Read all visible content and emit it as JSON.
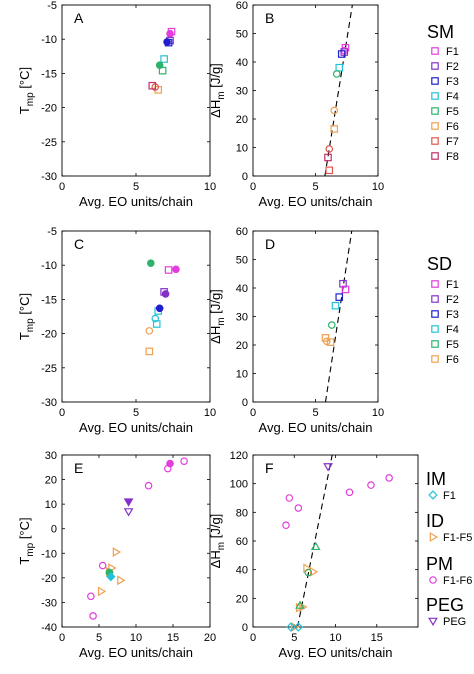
{
  "palette": {
    "F1": "#e33ddc",
    "F2": "#8431c9",
    "F3": "#1f1fcf",
    "F4": "#22c2d6",
    "F5": "#2db36b",
    "F6": "#f0a050",
    "F7": "#e0574a",
    "F8": "#c0306a"
  },
  "chart_data": [
    {
      "id": "A",
      "type": "scatter",
      "panel_label": "A",
      "xlabel": "Avg. EO units/chain",
      "ylabel_main": "T",
      "ylabel_sub": "mp",
      "ylabel_unit": " [°C]",
      "xlim": [
        0,
        10
      ],
      "ylim": [
        -30,
        -5
      ],
      "xticks": [
        0,
        5,
        10
      ],
      "yticks": [
        -5,
        -10,
        -15,
        -20,
        -25,
        -30
      ],
      "series": [
        {
          "marker": "square",
          "color": "F1",
          "filled": false,
          "points": [
            [
              7.4,
              -8.9
            ]
          ]
        },
        {
          "marker": "circle",
          "color": "F1",
          "filled": true,
          "points": [
            [
              7.3,
              -9.2
            ]
          ]
        },
        {
          "marker": "square",
          "color": "F2",
          "filled": false,
          "points": [
            [
              7.3,
              -10.2
            ]
          ]
        },
        {
          "marker": "square",
          "color": "F3",
          "filled": false,
          "points": [
            [
              7.2,
              -10.5
            ]
          ]
        },
        {
          "marker": "circle",
          "color": "F3",
          "filled": true,
          "points": [
            [
              7.1,
              -10.4
            ]
          ]
        },
        {
          "marker": "square",
          "color": "F4",
          "filled": false,
          "points": [
            [
              6.9,
              -12.9
            ]
          ]
        },
        {
          "marker": "circle",
          "color": "F5",
          "filled": true,
          "points": [
            [
              6.6,
              -13.8
            ]
          ]
        },
        {
          "marker": "square",
          "color": "F5",
          "filled": false,
          "points": [
            [
              6.8,
              -14.6
            ]
          ]
        },
        {
          "marker": "square",
          "color": "F6",
          "filled": false,
          "points": [
            [
              6.5,
              -17.4
            ]
          ]
        },
        {
          "marker": "circle",
          "color": "F7",
          "filled": false,
          "points": [
            [
              6.3,
              -17.0
            ]
          ]
        },
        {
          "marker": "square",
          "color": "F8",
          "filled": false,
          "points": [
            [
              6.1,
              -16.8
            ]
          ]
        }
      ]
    },
    {
      "id": "B",
      "type": "scatter",
      "panel_label": "B",
      "xlabel": "Avg. EO units/chain",
      "ylabel_main": "ΔH",
      "ylabel_sub": "m",
      "ylabel_unit": " [J/g]",
      "xlim": [
        0,
        10
      ],
      "ylim": [
        0,
        60
      ],
      "xticks": [
        0,
        5,
        10
      ],
      "yticks": [
        0,
        10,
        20,
        30,
        40,
        50,
        60
      ],
      "fit_line": [
        [
          5.75,
          0
        ],
        [
          7.95,
          60
        ]
      ],
      "series": [
        {
          "marker": "square",
          "color": "F1",
          "filled": false,
          "points": [
            [
              7.4,
              45.0
            ]
          ]
        },
        {
          "marker": "circle",
          "color": "F1",
          "filled": false,
          "points": [
            [
              7.3,
              44.0
            ]
          ]
        },
        {
          "marker": "square",
          "color": "F2",
          "filled": false,
          "points": [
            [
              7.3,
              43.5
            ]
          ]
        },
        {
          "marker": "square",
          "color": "F3",
          "filled": false,
          "points": [
            [
              7.1,
              42.8
            ]
          ]
        },
        {
          "marker": "square",
          "color": "F4",
          "filled": false,
          "points": [
            [
              6.9,
              38.0
            ]
          ]
        },
        {
          "marker": "circle",
          "color": "F5",
          "filled": false,
          "points": [
            [
              6.7,
              35.8
            ]
          ]
        },
        {
          "marker": "circle",
          "color": "F6",
          "filled": false,
          "points": [
            [
              6.5,
              23.0
            ]
          ]
        },
        {
          "marker": "square",
          "color": "F6",
          "filled": false,
          "points": [
            [
              6.5,
              16.5
            ]
          ]
        },
        {
          "marker": "circle",
          "color": "F7",
          "filled": false,
          "points": [
            [
              6.1,
              9.5
            ]
          ]
        },
        {
          "marker": "square",
          "color": "F8",
          "filled": false,
          "points": [
            [
              6.0,
              6.5
            ]
          ]
        },
        {
          "marker": "square",
          "color": "F7",
          "filled": false,
          "points": [
            [
              6.1,
              2.0
            ]
          ]
        }
      ]
    },
    {
      "id": "C",
      "type": "scatter",
      "panel_label": "C",
      "xlabel": "Avg. EO units/chain",
      "ylabel_main": "T",
      "ylabel_sub": "mp",
      "ylabel_unit": " [°C]",
      "xlim": [
        0,
        10
      ],
      "ylim": [
        -30,
        -5
      ],
      "xticks": [
        0,
        5,
        10
      ],
      "yticks": [
        -5,
        -10,
        -15,
        -20,
        -25,
        -30
      ],
      "series": [
        {
          "marker": "circle",
          "color": "F5",
          "filled": true,
          "points": [
            [
              6.0,
              -9.7
            ]
          ]
        },
        {
          "marker": "square",
          "color": "F1",
          "filled": false,
          "points": [
            [
              7.2,
              -10.7
            ]
          ]
        },
        {
          "marker": "circle",
          "color": "F1",
          "filled": true,
          "points": [
            [
              7.7,
              -10.6
            ]
          ]
        },
        {
          "marker": "square",
          "color": "F2",
          "filled": false,
          "points": [
            [
              6.9,
              -13.9
            ]
          ]
        },
        {
          "marker": "circle",
          "color": "F2",
          "filled": true,
          "points": [
            [
              7.0,
              -14.2
            ]
          ]
        },
        {
          "marker": "square",
          "color": "F4",
          "filled": false,
          "points": [
            [
              6.5,
              -16.7
            ]
          ]
        },
        {
          "marker": "circle",
          "color": "F3",
          "filled": true,
          "points": [
            [
              6.6,
              -16.3
            ]
          ]
        },
        {
          "marker": "circle",
          "color": "F4",
          "filled": false,
          "points": [
            [
              6.3,
              -17.8
            ]
          ]
        },
        {
          "marker": "square",
          "color": "F4",
          "filled": false,
          "points": [
            [
              6.4,
              -18.6
            ]
          ]
        },
        {
          "marker": "circle",
          "color": "F6",
          "filled": false,
          "points": [
            [
              5.9,
              -19.6
            ]
          ]
        },
        {
          "marker": "square",
          "color": "F6",
          "filled": false,
          "points": [
            [
              5.9,
              -22.6
            ]
          ]
        }
      ]
    },
    {
      "id": "D",
      "type": "scatter",
      "panel_label": "D",
      "xlabel": "Avg. EO units/chain",
      "ylabel_main": "ΔH",
      "ylabel_sub": "m",
      "ylabel_unit": " [J/g]",
      "xlim": [
        0,
        10
      ],
      "ylim": [
        0,
        60
      ],
      "xticks": [
        0,
        5,
        10
      ],
      "yticks": [
        0,
        10,
        20,
        30,
        40,
        50,
        60
      ],
      "fit_line": [
        [
          5.8,
          0
        ],
        [
          7.9,
          60
        ]
      ],
      "series": [
        {
          "marker": "square",
          "color": "F2",
          "filled": false,
          "points": [
            [
              7.2,
              41.5
            ]
          ]
        },
        {
          "marker": "square",
          "color": "F1",
          "filled": false,
          "points": [
            [
              7.4,
              39.5
            ]
          ]
        },
        {
          "marker": "square",
          "color": "F3",
          "filled": false,
          "points": [
            [
              6.9,
              36.8
            ]
          ]
        },
        {
          "marker": "square",
          "color": "F4",
          "filled": false,
          "points": [
            [
              6.6,
              33.8
            ]
          ]
        },
        {
          "marker": "circle",
          "color": "F5",
          "filled": false,
          "points": [
            [
              6.3,
              27.0
            ]
          ]
        },
        {
          "marker": "square",
          "color": "F6",
          "filled": false,
          "points": [
            [
              5.8,
              22.5
            ]
          ]
        },
        {
          "marker": "circle",
          "color": "F6",
          "filled": false,
          "points": [
            [
              5.9,
              21.3
            ]
          ]
        },
        {
          "marker": "square",
          "color": "F6",
          "filled": false,
          "points": [
            [
              6.2,
              21.0
            ]
          ]
        }
      ]
    },
    {
      "id": "E",
      "type": "scatter",
      "panel_label": "E",
      "xlabel": "Avg. EO units/chain",
      "ylabel_main": "T",
      "ylabel_sub": "mp",
      "ylabel_unit": " [°C]",
      "xlim": [
        0,
        20
      ],
      "ylim": [
        -40,
        30
      ],
      "xticks": [
        0,
        5,
        10,
        15,
        20
      ],
      "yticks": [
        30,
        20,
        10,
        0,
        -10,
        -20,
        -30,
        -40
      ],
      "series": [
        {
          "marker": "circle",
          "color": "F1",
          "filled": false,
          "points": [
            [
              16.5,
              27.5
            ],
            [
              14.3,
              24.5
            ],
            [
              11.7,
              17.5
            ],
            [
              5.5,
              -15.0
            ],
            [
              3.9,
              -27.5
            ],
            [
              4.2,
              -35.5
            ]
          ]
        },
        {
          "marker": "circle",
          "color": "F1",
          "filled": true,
          "points": [
            [
              14.6,
              26.5
            ]
          ]
        },
        {
          "marker": "tri-down",
          "color": "F2",
          "filled": true,
          "points": [
            [
              9.0,
              11.0
            ]
          ]
        },
        {
          "marker": "tri-down",
          "color": "F2",
          "filled": false,
          "points": [
            [
              9.0,
              7.0
            ]
          ]
        },
        {
          "marker": "tri-right",
          "color": "F6",
          "filled": false,
          "points": [
            [
              7.3,
              -9.5
            ],
            [
              6.7,
              -16.0
            ],
            [
              6.4,
              -17.5
            ],
            [
              7.9,
              -21.0
            ],
            [
              5.3,
              -25.5
            ]
          ]
        },
        {
          "marker": "circle",
          "color": "F5",
          "filled": true,
          "points": [
            [
              6.4,
              -17.8
            ]
          ]
        },
        {
          "marker": "diamond",
          "color": "F4",
          "filled": true,
          "points": [
            [
              6.6,
              -19.5
            ]
          ]
        }
      ]
    },
    {
      "id": "F",
      "type": "scatter",
      "panel_label": "F",
      "xlabel": "Avg. EO units/chain",
      "ylabel_main": "ΔH",
      "ylabel_sub": "m",
      "ylabel_unit": " [J/g]",
      "xlim": [
        0,
        20
      ],
      "ylim": [
        0,
        120
      ],
      "xticks": [
        0,
        5,
        10,
        15
      ],
      "yticks": [
        0,
        20,
        40,
        60,
        80,
        100,
        120
      ],
      "fit_line": [
        [
          5.4,
          0
        ],
        [
          9.6,
          120
        ]
      ],
      "series": [
        {
          "marker": "circle",
          "color": "F1",
          "filled": false,
          "points": [
            [
              16.5,
              104
            ],
            [
              14.3,
              99
            ],
            [
              11.7,
              94
            ],
            [
              5.5,
              83
            ],
            [
              4.4,
              90
            ],
            [
              4.0,
              71
            ]
          ]
        },
        {
          "marker": "tri-down",
          "color": "F2",
          "filled": false,
          "points": [
            [
              9.1,
              112
            ]
          ]
        },
        {
          "marker": "tri-up",
          "color": "F5",
          "filled": false,
          "points": [
            [
              7.6,
              56
            ]
          ]
        },
        {
          "marker": "tri-right",
          "color": "F6",
          "filled": false,
          "points": [
            [
              6.5,
              41
            ],
            [
              7.3,
              38.5
            ],
            [
              5.6,
              13.5
            ],
            [
              6.0,
              14
            ],
            [
              5.0,
              0
            ]
          ]
        },
        {
          "marker": "tri-up",
          "color": "F5",
          "filled": false,
          "points": [
            [
              5.7,
              15
            ]
          ]
        },
        {
          "marker": "circle",
          "color": "F5",
          "filled": false,
          "points": [
            [
              6.7,
              38
            ]
          ]
        },
        {
          "marker": "diamond",
          "color": "F4",
          "filled": false,
          "points": [
            [
              5.5,
              0
            ],
            [
              4.6,
              0
            ]
          ]
        }
      ]
    }
  ],
  "legends": [
    {
      "id": "sm",
      "title": "SM",
      "entries": [
        {
          "label": "F1",
          "marker": "square",
          "color": "F1"
        },
        {
          "label": "F2",
          "marker": "square",
          "color": "F2"
        },
        {
          "label": "F3",
          "marker": "square",
          "color": "F3"
        },
        {
          "label": "F4",
          "marker": "square",
          "color": "F4"
        },
        {
          "label": "F5",
          "marker": "square",
          "color": "F5"
        },
        {
          "label": "F6",
          "marker": "square",
          "color": "F6"
        },
        {
          "label": "F7",
          "marker": "square",
          "color": "F7"
        },
        {
          "label": "F8",
          "marker": "square",
          "color": "F8"
        }
      ]
    },
    {
      "id": "sd",
      "title": "SD",
      "entries": [
        {
          "label": "F1",
          "marker": "square",
          "color": "F1"
        },
        {
          "label": "F2",
          "marker": "square",
          "color": "F2"
        },
        {
          "label": "F3",
          "marker": "square",
          "color": "F3"
        },
        {
          "label": "F4",
          "marker": "square",
          "color": "F4"
        },
        {
          "label": "F5",
          "marker": "square",
          "color": "F5"
        },
        {
          "label": "F6",
          "marker": "square",
          "color": "F6"
        }
      ]
    },
    {
      "id": "bottom",
      "groups": [
        {
          "title": "IM",
          "label": "F1",
          "marker": "diamond",
          "color": "F4"
        },
        {
          "title": "ID",
          "label": "F1-F5",
          "marker": "tri-right",
          "color": "F6"
        },
        {
          "title": "PM",
          "label": "F1-F6",
          "marker": "circle",
          "color": "F1"
        },
        {
          "title": "PEG",
          "label": "PEG",
          "marker": "tri-down",
          "color": "F2"
        }
      ]
    }
  ]
}
